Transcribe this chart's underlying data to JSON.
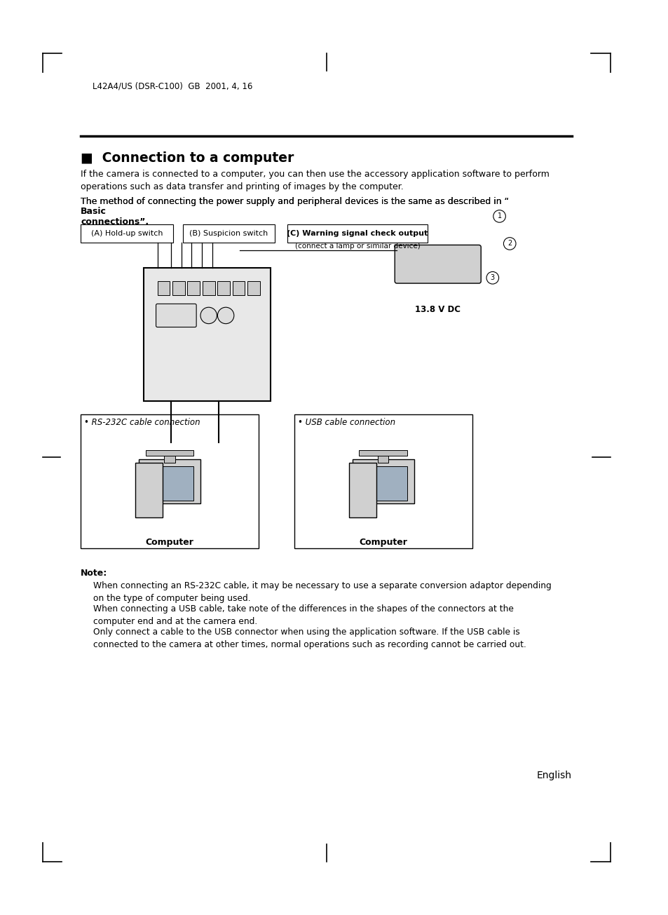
{
  "bg_color": "#ffffff",
  "header_text": "L42A4/US (DSR-C100)  GB  2001, 4, 16",
  "title": "■  Connection to a computer",
  "para1": "If the camera is connected to a computer, you can then use the accessory application software to perform\noperations such as data transfer and printing of images by the computer.",
  "para2_normal": "The method of connecting the power supply and peripheral devices is the same as described in “",
  "para2_bold": "Basic\nconnections",
  "para2_end": "”.",
  "label_A": "(A) Hold-up switch",
  "label_B": "(B) Suspicion switch",
  "label_C": "(C) Warning signal check output",
  "label_C2": "(connect a lamp or similar device)",
  "label_voltage": "13.8 V DC",
  "label_rs232": "• RS-232C cable connection",
  "label_usb": "• USB cable connection",
  "label_computer1": "Computer",
  "label_computer2": "Computer",
  "note_title": "Note:",
  "note1": "When connecting an RS-232C cable, it may be necessary to use a separate conversion adaptor depending\non the type of computer being used.",
  "note2": "When connecting a USB cable, take note of the differences in the shapes of the connectors at the\ncomputer end and at the camera end.",
  "note3": "Only connect a cable to the USB connector when using the application software. If the USB cable is\nconnected to the camera at other times, normal operations such as recording cannot be carried out.",
  "footer_text": "English"
}
